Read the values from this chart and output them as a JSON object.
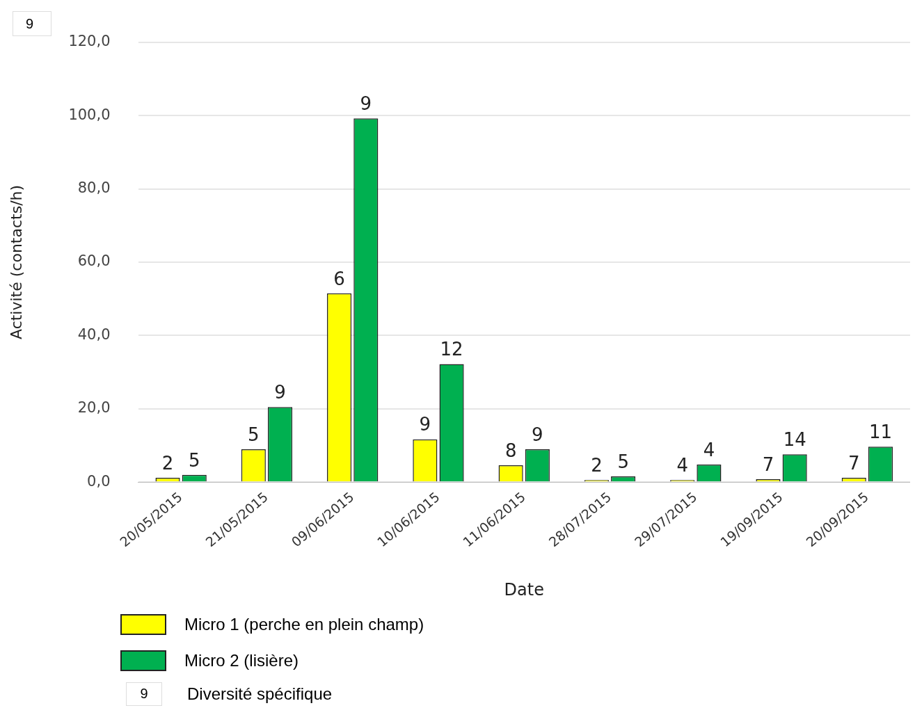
{
  "chart_data": {
    "type": "bar",
    "xlabel": "Date",
    "ylabel": "Activité (contacts/h)",
    "categories": [
      "20/05/2015",
      "21/05/2015",
      "09/06/2015",
      "10/06/2015",
      "11/06/2015",
      "28/07/2015",
      "29/07/2015",
      "19/09/2015",
      "20/09/2015"
    ],
    "series": [
      {
        "name": "Micro 1 (perche en plein champ)",
        "color": "#ffff00",
        "values": [
          1.2,
          9,
          51.5,
          11.7,
          4.6,
          0.6,
          0.6,
          0.8,
          1.2
        ]
      },
      {
        "name": "Micro 2 (lisière)",
        "color": "#00b050",
        "values": [
          2.0,
          20.5,
          99.2,
          32.2,
          9.0,
          1.6,
          4.8,
          7.6,
          9.7
        ]
      }
    ],
    "ylim": [
      0,
      120
    ],
    "yticks": [
      {
        "value": 0,
        "label": "0,0"
      },
      {
        "value": 20,
        "label": "20,0"
      },
      {
        "value": 40,
        "label": "40,0"
      },
      {
        "value": 60,
        "label": "60,0"
      },
      {
        "value": 80,
        "label": "80,0"
      },
      {
        "value": 100,
        "label": "100,0"
      },
      {
        "value": 120,
        "label": "120,0"
      }
    ],
    "grid": "y",
    "legend": "bottom",
    "annotations": [
      "9",
      "9",
      "Diversité spécifique",
      {
        "text": "2",
        "x": "20/05/2015",
        "y": 1.2
      },
      {
        "text": "5",
        "x": "21/05/2015",
        "y": 9
      },
      {
        "text": "6",
        "x": "09/06/2015",
        "y": 51.5
      },
      {
        "text": "9",
        "x": "10/06/2015",
        "y": 11.7
      },
      {
        "text": "8",
        "x": "11/06/2015",
        "y": 4.6
      },
      {
        "text": "2",
        "x": "28/07/2015",
        "y": 0.6
      },
      {
        "text": "4",
        "x": "29/07/2015",
        "y": 0.6
      },
      {
        "text": "7",
        "x": "19/09/2015",
        "y": 0.8
      },
      {
        "text": "7",
        "x": "20/09/2015",
        "y": 1.2
      },
      {
        "text": "5",
        "x": "20/05/2015",
        "y": 2.0
      },
      {
        "text": "9",
        "x": "21/05/2015",
        "y": 20.5
      },
      {
        "text": "9",
        "x": "09/06/2015",
        "y": 99.2
      },
      {
        "text": "12",
        "x": "10/06/2015",
        "y": 32.2
      },
      {
        "text": "9",
        "x": "11/06/2015",
        "y": 9.0
      },
      {
        "text": "5",
        "x": "28/07/2015",
        "y": 1.6
      },
      {
        "text": "4",
        "x": "29/07/2015",
        "y": 4.8
      },
      {
        "text": "14",
        "x": "19/09/2015",
        "y": 7.6
      },
      {
        "text": "11",
        "x": "20/09/2015",
        "y": 9.7
      }
    ]
  }
}
